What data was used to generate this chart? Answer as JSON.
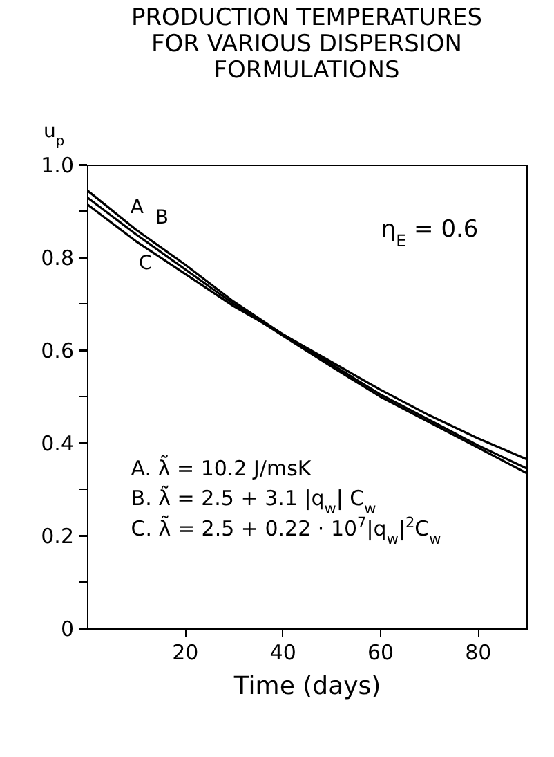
{
  "chart_data": {
    "type": "line",
    "title": "PRODUCTION TEMPERATURES FOR VARIOUS DISPERSION FORMULATIONS",
    "xlabel": "Time (days)",
    "ylabel": "u$_{p}$",
    "x": [
      0,
      10,
      20,
      30,
      40,
      50,
      60,
      70,
      80,
      90
    ],
    "series": [
      {
        "name": "A",
        "color": "#000000",
        "values": [
          0.945,
          0.86,
          0.785,
          0.705,
          0.635,
          0.57,
          0.505,
          0.45,
          0.395,
          0.345
        ]
      },
      {
        "name": "B",
        "color": "#000000",
        "values": [
          0.93,
          0.85,
          0.775,
          0.7,
          0.632,
          0.565,
          0.5,
          0.445,
          0.39,
          0.335
        ]
      },
      {
        "name": "C",
        "color": "#000000",
        "values": [
          0.915,
          0.835,
          0.765,
          0.695,
          0.635,
          0.575,
          0.515,
          0.46,
          0.41,
          0.365
        ]
      }
    ],
    "xlim": [
      0,
      90
    ],
    "xticks": [
      20,
      40,
      60,
      80
    ],
    "ylim": [
      0,
      1.0
    ],
    "yticks": [
      {
        "value": 0,
        "label": "0"
      },
      {
        "value": 0.1,
        "label": null
      },
      {
        "value": 0.2,
        "label": "0.2"
      },
      {
        "value": 0.3,
        "label": null
      },
      {
        "value": 0.4,
        "label": "0.4"
      },
      {
        "value": 0.5,
        "label": null
      },
      {
        "value": 0.6,
        "label": "0.6"
      },
      {
        "value": 0.7,
        "label": null
      },
      {
        "value": 0.8,
        "label": "0.8"
      },
      {
        "value": 0.9,
        "label": null
      },
      {
        "value": 1.0,
        "label": "1.0"
      }
    ],
    "annotations": [
      "η$_{E}$ = 0.6",
      "A. λ̃ = 10.2 J/msK",
      "B. λ̃ = 2.5 + 3.1 |q$_{w}$| C$_{w}$",
      "C. λ̃ = 2.5 + 0.22 · 10$^{7}$|q$_{w}$|$^{2}$C$_{w}$"
    ],
    "grid": false,
    "legend": false,
    "marker": "none",
    "line_style": "solid"
  }
}
